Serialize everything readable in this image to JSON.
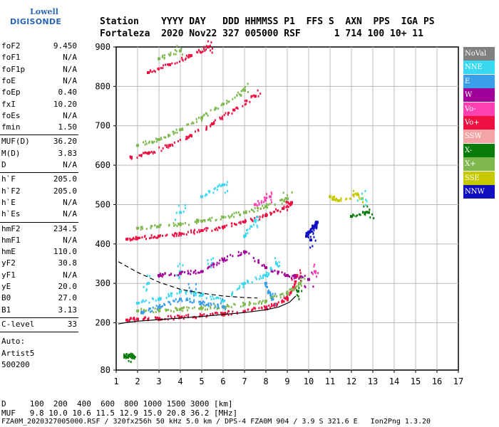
{
  "logo": {
    "line1": "Lowell",
    "line2": "DIGISONDE"
  },
  "header": {
    "labels": "Station    YYYY DAY   DDD HHMMSS P1  FFS S  AXN  PPS  IGA PS",
    "values": "Fortaleza  2020 Nov22 327 005000 RSF      1 714 100 10+ 11"
  },
  "params": {
    "group1": [
      {
        "k": "foF2",
        "v": "9.450"
      },
      {
        "k": "foF1",
        "v": "N/A"
      },
      {
        "k": "foF1p",
        "v": "N/A"
      },
      {
        "k": "foE",
        "v": "N/A"
      },
      {
        "k": "foEp",
        "v": "0.40"
      },
      {
        "k": "fxI",
        "v": "10.20"
      },
      {
        "k": "foEs",
        "v": "N/A"
      },
      {
        "k": "fmin",
        "v": "1.50"
      }
    ],
    "group2": [
      {
        "k": "MUF(D)",
        "v": "36.20"
      },
      {
        "k": "M(D)",
        "v": "3.83"
      },
      {
        "k": "D",
        "v": "N/A"
      }
    ],
    "group3": [
      {
        "k": "h`F",
        "v": "205.0"
      },
      {
        "k": "h`F2",
        "v": "205.0"
      },
      {
        "k": "h`E",
        "v": "N/A"
      },
      {
        "k": "h`Es",
        "v": "N/A"
      }
    ],
    "group4": [
      {
        "k": "hmF2",
        "v": "234.5"
      },
      {
        "k": "hmF1",
        "v": "N/A"
      },
      {
        "k": "hmE",
        "v": "110.0"
      },
      {
        "k": "yF2",
        "v": "30.8"
      },
      {
        "k": "yF1",
        "v": "N/A"
      },
      {
        "k": "yE",
        "v": "20.0"
      },
      {
        "k": "B0",
        "v": "27.0"
      },
      {
        "k": "B1",
        "v": "3.13"
      }
    ],
    "clevel": {
      "k": "C-level",
      "v": "33"
    },
    "auto": [
      "Auto:",
      "Artist5",
      "500200"
    ]
  },
  "legend": [
    {
      "label": "NoVal",
      "color": "#808080"
    },
    {
      "label": "NNE",
      "color": "#3ad8f0"
    },
    {
      "label": "E",
      "color": "#3a9ee8"
    },
    {
      "label": "W",
      "color": "#a0009a"
    },
    {
      "label": "Vo-",
      "color": "#ff40b0"
    },
    {
      "label": "Vo+",
      "color": "#ee1040"
    },
    {
      "label": "SSW",
      "color": "#f4a4a4"
    },
    {
      "label": "X-",
      "color": "#0a7a0a"
    },
    {
      "label": "X+",
      "color": "#80b850"
    },
    {
      "label": "SSE",
      "color": "#c8c800"
    },
    {
      "label": "NNW",
      "color": "#1010c0"
    }
  ],
  "chart_data": {
    "type": "scatter",
    "xlim": [
      1,
      17
    ],
    "ylim": [
      80,
      900
    ],
    "x_ticks": [
      1,
      2,
      3,
      4,
      5,
      6,
      7,
      8,
      9,
      10,
      11,
      12,
      13,
      14,
      15,
      16,
      17
    ],
    "y_ticks": [
      80,
      200,
      300,
      400,
      500,
      600,
      700,
      800,
      900
    ],
    "grid": true,
    "series": [
      {
        "name": "Vo+",
        "color": "#ee1040",
        "points": [
          [
            1.5,
            207
          ],
          [
            2,
            209
          ],
          [
            3,
            211
          ],
          [
            4,
            214
          ],
          [
            5,
            218
          ],
          [
            6,
            223
          ],
          [
            7,
            229
          ],
          [
            8,
            238
          ],
          [
            8.5,
            247
          ],
          [
            9,
            262
          ],
          [
            9.3,
            290
          ],
          [
            9.45,
            320
          ],
          [
            1.5,
            412
          ],
          [
            2,
            415
          ],
          [
            3,
            420
          ],
          [
            4,
            426
          ],
          [
            5,
            434
          ],
          [
            6,
            443
          ],
          [
            7,
            456
          ],
          [
            8,
            472
          ],
          [
            8.8,
            490
          ],
          [
            9.2,
            505
          ],
          [
            1.7,
            620
          ],
          [
            2.5,
            630
          ],
          [
            3.5,
            650
          ],
          [
            4.5,
            675
          ],
          [
            5.5,
            705
          ],
          [
            6.5,
            740
          ],
          [
            7.5,
            775
          ],
          [
            2.5,
            835
          ],
          [
            3.5,
            855
          ],
          [
            4.5,
            878
          ],
          [
            5.3,
            900
          ]
        ]
      },
      {
        "name": "X+",
        "color": "#80b850",
        "points": [
          [
            2,
            230
          ],
          [
            3,
            232
          ],
          [
            4,
            234
          ],
          [
            5,
            237
          ],
          [
            6,
            241
          ],
          [
            7,
            247
          ],
          [
            8,
            255
          ],
          [
            9,
            275
          ],
          [
            9.6,
            300
          ],
          [
            2,
            440
          ],
          [
            3,
            444
          ],
          [
            4,
            450
          ],
          [
            5,
            458
          ],
          [
            6,
            468
          ],
          [
            7,
            480
          ],
          [
            8,
            495
          ],
          [
            9,
            515
          ],
          [
            2,
            650
          ],
          [
            3,
            665
          ],
          [
            4,
            690
          ],
          [
            5,
            720
          ],
          [
            6,
            755
          ],
          [
            7,
            790
          ],
          [
            3,
            870
          ],
          [
            4,
            890
          ]
        ]
      },
      {
        "name": "NNE",
        "color": "#3ad8f0",
        "points": [
          [
            2,
            250
          ],
          [
            3,
            260
          ],
          [
            4,
            280
          ],
          [
            5,
            270
          ],
          [
            6,
            255
          ],
          [
            7,
            300
          ],
          [
            8,
            320
          ],
          [
            8.5,
            350
          ],
          [
            2.5,
            300
          ],
          [
            4,
            330
          ],
          [
            5.5,
            350
          ],
          [
            7,
            420
          ],
          [
            7.5,
            460
          ],
          [
            5,
            520
          ],
          [
            6,
            550
          ],
          [
            4,
            480
          ],
          [
            12.5,
            515
          ]
        ]
      },
      {
        "name": "E",
        "color": "#3a9ee8",
        "points": [
          [
            2.2,
            225
          ],
          [
            3,
            240
          ],
          [
            4,
            260
          ],
          [
            5,
            250
          ],
          [
            6,
            240
          ],
          [
            8,
            300
          ],
          [
            8.3,
            260
          ],
          [
            4.5,
            280
          ]
        ]
      },
      {
        "name": "W",
        "color": "#a0009a",
        "points": [
          [
            3,
            320
          ],
          [
            4,
            325
          ],
          [
            5,
            330
          ],
          [
            6,
            360
          ],
          [
            7,
            380
          ],
          [
            8,
            340
          ],
          [
            9,
            320
          ],
          [
            10,
            310
          ]
        ]
      },
      {
        "name": "X-",
        "color": "#0a7a0a",
        "points": [
          [
            1.4,
            115
          ],
          [
            1.6,
            116
          ],
          [
            1.8,
            115
          ],
          [
            9.5,
            280
          ],
          [
            12,
            470
          ],
          [
            12.8,
            480
          ]
        ]
      },
      {
        "name": "NNW",
        "color": "#1010c0",
        "points": [
          [
            9.9,
            420
          ],
          [
            10,
            430
          ],
          [
            10.2,
            440
          ],
          [
            10.4,
            455
          ],
          [
            10.1,
            410
          ]
        ]
      },
      {
        "name": "SSE",
        "color": "#c8c800",
        "points": [
          [
            11,
            520
          ],
          [
            11.4,
            510
          ],
          [
            12.3,
            525
          ]
        ]
      },
      {
        "name": "Vo-",
        "color": "#ff40b0",
        "points": [
          [
            7.5,
            500
          ],
          [
            8.2,
            520
          ],
          [
            10.3,
            330
          ]
        ]
      }
    ],
    "curves": [
      {
        "style": "solid",
        "points": [
          [
            1.1,
            197
          ],
          [
            1.5,
            201
          ],
          [
            2,
            204
          ],
          [
            3,
            208
          ],
          [
            4,
            212
          ],
          [
            5,
            216
          ],
          [
            6,
            221
          ],
          [
            7,
            226
          ],
          [
            8,
            233
          ],
          [
            8.6,
            240
          ],
          [
            9.1,
            252
          ],
          [
            9.4,
            268
          ]
        ]
      },
      {
        "style": "dashed",
        "points": [
          [
            1.1,
            355
          ],
          [
            2,
            328
          ],
          [
            3,
            303
          ],
          [
            4,
            285
          ],
          [
            5,
            275
          ],
          [
            6,
            268
          ],
          [
            7,
            264
          ],
          [
            7.6,
            263
          ]
        ]
      }
    ]
  },
  "footer": {
    "line1": "D     100  200  400  600  800 1000 1500 3000 [km]",
    "line2": "MUF   9.8 10.0 10.6 11.5 12.9 15.0 20.8 36.2 [MHz]",
    "line3": "FZA0M_2020327005000.RSF / 320fx256h 50 kHz 5.0 km / DPS-4 FZA0M 904 / 3.9 S 321.6 E   Ion2Png 1.3.20"
  }
}
